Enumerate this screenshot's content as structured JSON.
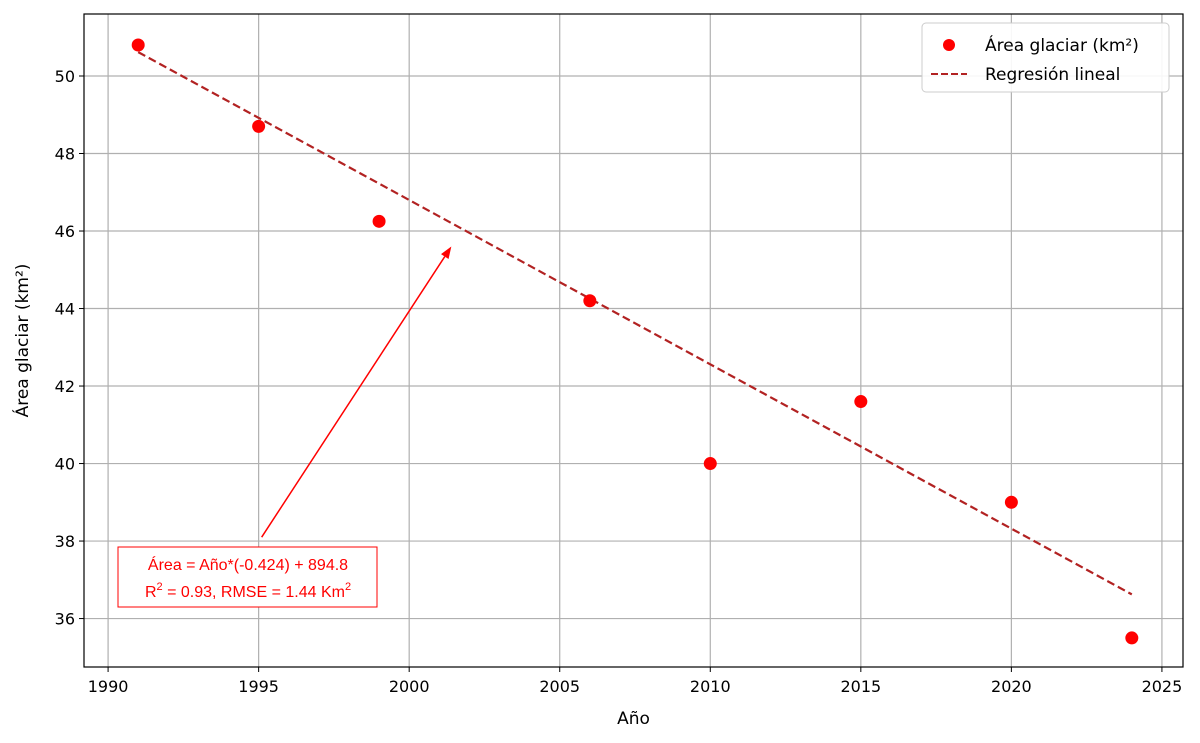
{
  "chart_data": {
    "type": "scatter",
    "xlabel": "Año",
    "ylabel": "Área glaciar (km²)",
    "xlim": [
      1989.2,
      2025.7
    ],
    "ylim": [
      34.75,
      51.6
    ],
    "x_ticks": [
      1990,
      1995,
      2000,
      2005,
      2010,
      2015,
      2020,
      2025
    ],
    "y_ticks": [
      36,
      38,
      40,
      42,
      44,
      46,
      48,
      50
    ],
    "grid": true,
    "legend_position": "top-right",
    "series": [
      {
        "name": "Área glaciar (km²)",
        "kind": "scatter",
        "color": "#ff0000",
        "x": [
          1991,
          1995,
          1999,
          2006,
          2010,
          2015,
          2020,
          2024
        ],
        "y": [
          50.8,
          48.7,
          46.25,
          44.2,
          40.0,
          41.6,
          39.0,
          35.5
        ]
      },
      {
        "name": "Regresión lineal",
        "kind": "line",
        "style": "dashed",
        "color": "#b22222",
        "slope": -0.424,
        "intercept": 894.8,
        "x_range": [
          1991,
          2024
        ]
      }
    ],
    "annotation": {
      "line1": "Área = Año*(-0.424) + 894.8",
      "line2_r": "R",
      "line2_r_sup": "2",
      "line2_mid": " = 0.93, RMSE = 1.44 Km",
      "line2_km_sup": "2",
      "color": "#ff0000",
      "arrow_from": [
        1995.1,
        38.1
      ],
      "arrow_to": [
        2001.4,
        45.6
      ]
    }
  }
}
